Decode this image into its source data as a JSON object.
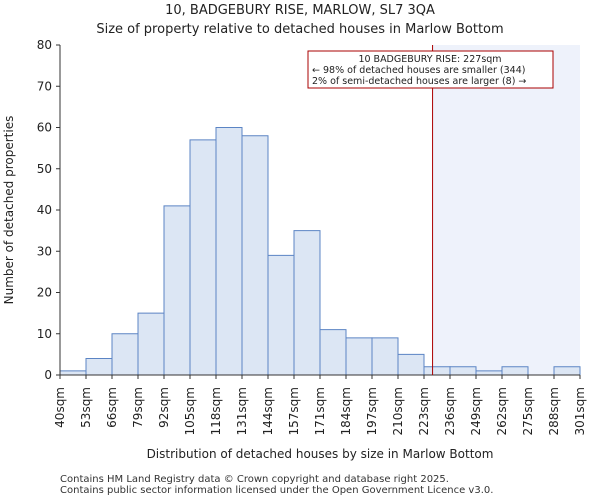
{
  "header": {
    "title": "10, BADGEBURY RISE, MARLOW, SL7 3QA",
    "subtitle": "Size of property relative to detached houses in Marlow Bottom"
  },
  "footer": {
    "line1": "Contains HM Land Registry data © Crown copyright and database right 2025.",
    "line2": "Contains public sector information licensed under the Open Government Licence v3.0."
  },
  "annotation": {
    "line1": "10 BADGEBURY RISE: 227sqm",
    "line2": "← 98% of detached houses are smaller (344)",
    "line3": "2% of semi-detached houses are larger (8) →",
    "marker_value": 227
  },
  "colors": {
    "bar_fill": "#dce6f4",
    "bar_stroke": "#5b84c4",
    "marker": "#aa0000",
    "highlight_fill": "#eef2fb"
  },
  "chart_data": {
    "type": "bar",
    "title": "10, BADGEBURY RISE, MARLOW, SL7 3QA",
    "subtitle": "Size of property relative to detached houses in Marlow Bottom",
    "xlabel": "Distribution of detached houses by size in Marlow Bottom",
    "ylabel": "Number of detached properties",
    "bin_edges": [
      40,
      53,
      66,
      79,
      92,
      105,
      118,
      131,
      144,
      157,
      171,
      184,
      197,
      210,
      223,
      236,
      249,
      262,
      275,
      288,
      301
    ],
    "tick_labels": [
      "40sqm",
      "53sqm",
      "66sqm",
      "79sqm",
      "92sqm",
      "105sqm",
      "118sqm",
      "131sqm",
      "144sqm",
      "157sqm",
      "171sqm",
      "184sqm",
      "197sqm",
      "210sqm",
      "223sqm",
      "236sqm",
      "249sqm",
      "262sqm",
      "275sqm",
      "288sqm",
      "301sqm"
    ],
    "values": [
      1,
      4,
      10,
      15,
      41,
      57,
      60,
      58,
      29,
      35,
      11,
      9,
      9,
      5,
      2,
      2,
      1,
      2,
      0,
      2
    ],
    "ylim": [
      0,
      80
    ],
    "yticks": [
      0,
      10,
      20,
      30,
      40,
      50,
      60,
      70,
      80
    ],
    "grid": false
  }
}
